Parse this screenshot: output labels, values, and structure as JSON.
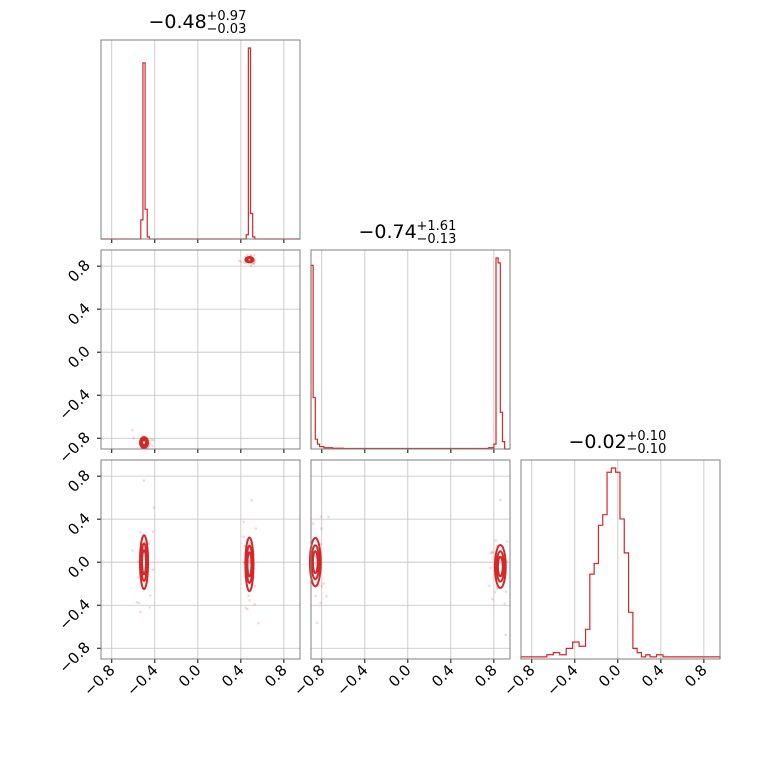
{
  "colors": {
    "series": "#d62728",
    "grid": "#c0c0c0",
    "frame": "#808080"
  },
  "chart_data": {
    "type": "corner",
    "parameters": 3,
    "axis_range": [
      -0.9,
      0.95
    ],
    "ticks": [
      -0.8,
      -0.4,
      0.0,
      0.4,
      0.8
    ],
    "tick_labels": [
      "−0.8",
      "−0.4",
      "0.0",
      "0.4",
      "0.8"
    ],
    "grid": true,
    "titles": [
      {
        "median": "−0.48",
        "plus": "+0.97",
        "minus": "−0.03"
      },
      {
        "median": "−0.74",
        "plus": "+1.61",
        "minus": "−0.13"
      },
      {
        "median": "−0.02",
        "plus": "+0.10",
        "minus": "−0.10"
      }
    ],
    "histograms": [
      {
        "bin_edges": [
          -0.53,
          -0.51,
          -0.49,
          -0.47,
          -0.45,
          0.45,
          0.47,
          0.49,
          0.51,
          0.53
        ],
        "counts": [
          0.09,
          0.83,
          0.14,
          0.01,
          0,
          0.02,
          0.9,
          0.12,
          0.01
        ]
      },
      {
        "bin_edges": [
          -0.9,
          -0.88,
          -0.86,
          -0.84,
          -0.82,
          -0.78,
          -0.7,
          -0.6,
          0.75,
          0.8,
          0.82,
          0.84,
          0.86,
          0.88,
          0.9
        ],
        "counts": [
          0.75,
          0.21,
          0.04,
          0.02,
          0.01,
          0.005,
          0.003,
          0.002,
          0.005,
          0.02,
          0.78,
          0.76,
          0.15,
          0.03
        ]
      },
      {
        "bin_edges": [
          -0.9,
          -0.66,
          -0.6,
          -0.54,
          -0.48,
          -0.42,
          -0.36,
          -0.3,
          -0.26,
          -0.22,
          -0.18,
          -0.14,
          -0.1,
          -0.06,
          -0.02,
          0.02,
          0.06,
          0.1,
          0.14,
          0.18,
          0.22,
          0.26,
          0.3,
          0.36,
          0.42,
          0.54,
          0.66,
          0.95
        ],
        "counts": [
          0.01,
          0.02,
          0.03,
          0.02,
          0.05,
          0.08,
          0.06,
          0.14,
          0.4,
          0.45,
          0.63,
          0.68,
          0.88,
          0.9,
          0.88,
          0.66,
          0.5,
          0.22,
          0.05,
          0.03,
          0.01,
          0.02,
          0.01,
          0.02,
          0.01,
          0.01,
          0.01
        ]
      }
    ],
    "pairs": [
      {
        "row": 1,
        "col": 0,
        "modes": [
          {
            "x": 0.48,
            "y": 0.86,
            "sx": 0.015,
            "sy": 0.01
          },
          {
            "x": -0.5,
            "y": -0.84,
            "sx": 0.015,
            "sy": 0.02
          }
        ]
      },
      {
        "row": 2,
        "col": 0,
        "modes": [
          {
            "x": -0.5,
            "y": 0.0,
            "sx": 0.015,
            "sy": 0.1
          },
          {
            "x": 0.48,
            "y": -0.02,
            "sx": 0.015,
            "sy": 0.1
          }
        ]
      },
      {
        "row": 2,
        "col": 1,
        "modes": [
          {
            "x": -0.86,
            "y": 0.0,
            "sx": 0.02,
            "sy": 0.09
          },
          {
            "x": 0.86,
            "y": -0.04,
            "sx": 0.02,
            "sy": 0.08
          }
        ]
      }
    ]
  }
}
